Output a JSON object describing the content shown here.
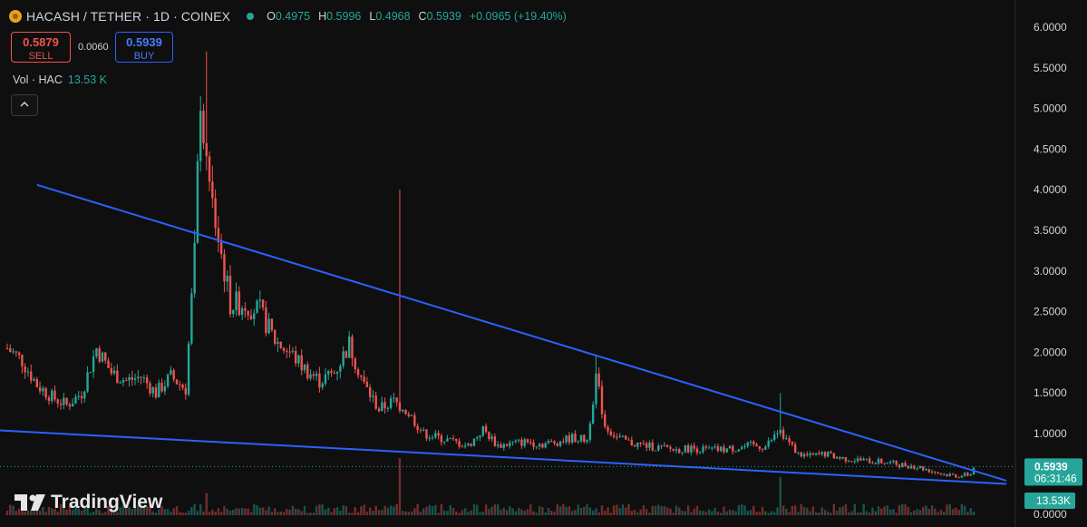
{
  "header": {
    "title": "HACASH / TETHER · 1D · COINEX",
    "open_label": "O",
    "open": "0.4975",
    "high_label": "H",
    "high": "0.5996",
    "low_label": "L",
    "low": "0.4968",
    "close_label": "C",
    "close": "0.5939",
    "change": "+0.0965 (+19.40%)",
    "accent_color": "#26a69a"
  },
  "trade": {
    "sell_price": "0.5879",
    "sell_label": "SELL",
    "spread": "0.0060",
    "buy_price": "0.5939",
    "buy_label": "BUY"
  },
  "volume_legend": {
    "label": "Vol · HAC",
    "value": "13.53 K"
  },
  "price_axis": {
    "ticks": [
      "6.0000",
      "5.5000",
      "5.0000",
      "4.5000",
      "4.0000",
      "3.5000",
      "3.0000",
      "2.5000",
      "2.0000",
      "1.5000",
      "1.0000",
      "0.0000"
    ],
    "current_price": "0.5939",
    "countdown": "06:31:46",
    "volume_tag": "13.53K"
  },
  "brand": "TradingView",
  "chart_data": {
    "type": "candlestick",
    "ylim": [
      0,
      6.2
    ],
    "up_color": "#26a69a",
    "down_color": "#ef5350",
    "trendline_color": "#2962ff",
    "close_path": [
      [
        0,
        2.05
      ],
      [
        5,
        1.9
      ],
      [
        10,
        1.6
      ],
      [
        15,
        1.45
      ],
      [
        20,
        1.35
      ],
      [
        25,
        1.5
      ],
      [
        30,
        2.05
      ],
      [
        35,
        1.75
      ],
      [
        40,
        1.65
      ],
      [
        45,
        1.7
      ],
      [
        50,
        1.5
      ],
      [
        55,
        1.7
      ],
      [
        60,
        1.55
      ],
      [
        63,
        3.2
      ],
      [
        65,
        5.2
      ],
      [
        67,
        4.2
      ],
      [
        70,
        3.6
      ],
      [
        75,
        2.6
      ],
      [
        80,
        2.6
      ],
      [
        85,
        2.5
      ],
      [
        90,
        2.15
      ],
      [
        95,
        2.0
      ],
      [
        100,
        1.8
      ],
      [
        105,
        1.65
      ],
      [
        110,
        1.75
      ],
      [
        115,
        2.1
      ],
      [
        120,
        1.6
      ],
      [
        125,
        1.3
      ],
      [
        130,
        1.4
      ],
      [
        135,
        1.25
      ],
      [
        140,
        1.0
      ],
      [
        145,
        0.95
      ],
      [
        150,
        0.9
      ],
      [
        155,
        0.85
      ],
      [
        160,
        1.05
      ],
      [
        165,
        0.85
      ],
      [
        170,
        0.88
      ],
      [
        175,
        0.9
      ],
      [
        180,
        0.87
      ],
      [
        185,
        0.9
      ],
      [
        190,
        0.95
      ],
      [
        195,
        0.92
      ],
      [
        198,
        1.7
      ],
      [
        201,
        1.1
      ],
      [
        205,
        0.95
      ],
      [
        210,
        0.88
      ],
      [
        215,
        0.85
      ],
      [
        220,
        0.82
      ],
      [
        225,
        0.8
      ],
      [
        230,
        0.82
      ],
      [
        235,
        0.8
      ],
      [
        240,
        0.8
      ],
      [
        245,
        0.82
      ],
      [
        250,
        0.85
      ],
      [
        255,
        0.84
      ],
      [
        260,
        1.05
      ],
      [
        263,
        0.88
      ],
      [
        266,
        0.75
      ],
      [
        270,
        0.72
      ],
      [
        275,
        0.75
      ],
      [
        280,
        0.7
      ],
      [
        285,
        0.68
      ],
      [
        290,
        0.66
      ],
      [
        295,
        0.65
      ],
      [
        300,
        0.62
      ],
      [
        305,
        0.6
      ],
      [
        310,
        0.55
      ],
      [
        315,
        0.5
      ],
      [
        320,
        0.48
      ],
      [
        324,
        0.5
      ],
      [
        325,
        0.5939
      ]
    ],
    "spikes": [
      [
        67,
        5.7
      ],
      [
        132,
        4.0
      ],
      [
        198,
        1.95
      ],
      [
        260,
        1.5
      ]
    ],
    "trendlines": [
      {
        "from": [
          10,
          4.06
        ],
        "to": [
          336,
          0.42
        ]
      },
      {
        "from": [
          -3,
          1.04
        ],
        "to": [
          336,
          0.38
        ]
      }
    ],
    "volume": {
      "avg": 0.12,
      "spikes": [
        [
          67,
          0.35
        ],
        [
          132,
          0.9
        ],
        [
          260,
          0.6
        ]
      ]
    }
  }
}
